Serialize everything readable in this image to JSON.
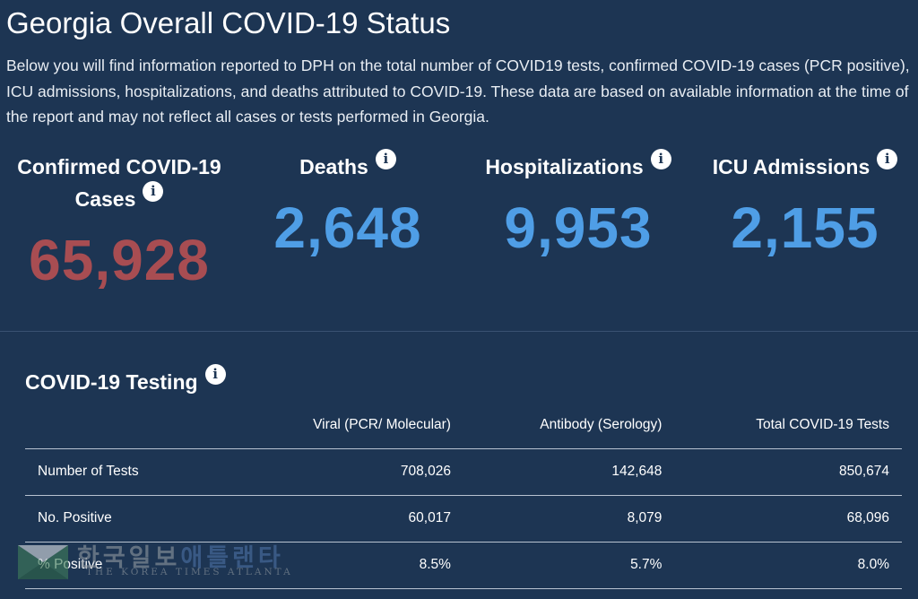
{
  "header": {
    "title": "Georgia Overall COVID-19 Status",
    "intro": "Below you will find information reported to DPH on the total number of COVID19 tests, confirmed COVID-19 cases (PCR positive), ICU admissions, hospitalizations, and deaths attributed to COVID-19. These data are based on available information at the time of the report and may not reflect all cases or tests performed in Georgia."
  },
  "stats": {
    "cases": {
      "label_line1": "Confirmed COVID-19",
      "label_line2": "Cases",
      "value": "65,928",
      "color": "#a84d52"
    },
    "deaths": {
      "label": "Deaths",
      "value": "2,648",
      "color": "#4f9ee6"
    },
    "hospitalizations": {
      "label": "Hospitalizations",
      "value": "9,953",
      "color": "#4f9ee6"
    },
    "icu": {
      "label": "ICU Admissions",
      "value": "2,155",
      "color": "#4f9ee6"
    }
  },
  "info_icon": {
    "icon": "info-icon",
    "glyph": "i"
  },
  "testing": {
    "title": "COVID-19 Testing",
    "columns": [
      "",
      "Viral (PCR/ Molecular)",
      "Antibody (Serology)",
      "Total COVID-19 Tests"
    ],
    "rows": [
      {
        "label": "Number of Tests",
        "viral": "708,026",
        "antibody": "142,648",
        "total": "850,674"
      },
      {
        "label": "No. Positive",
        "viral": "60,017",
        "antibody": "8,079",
        "total": "68,096"
      },
      {
        "label": "% Positive",
        "viral": "8.5%",
        "antibody": "5.7%",
        "total": "8.0%"
      }
    ]
  },
  "watermark": {
    "korean_a": "한국일보",
    "korean_b": "애틀랜타",
    "english": "THE KOREA TIMES ATLANTA"
  },
  "colors": {
    "background": "#1d3553",
    "cases_value": "#a84d52",
    "value_blue": "#4f9ee6",
    "table_rule": "#b8c3d1"
  }
}
